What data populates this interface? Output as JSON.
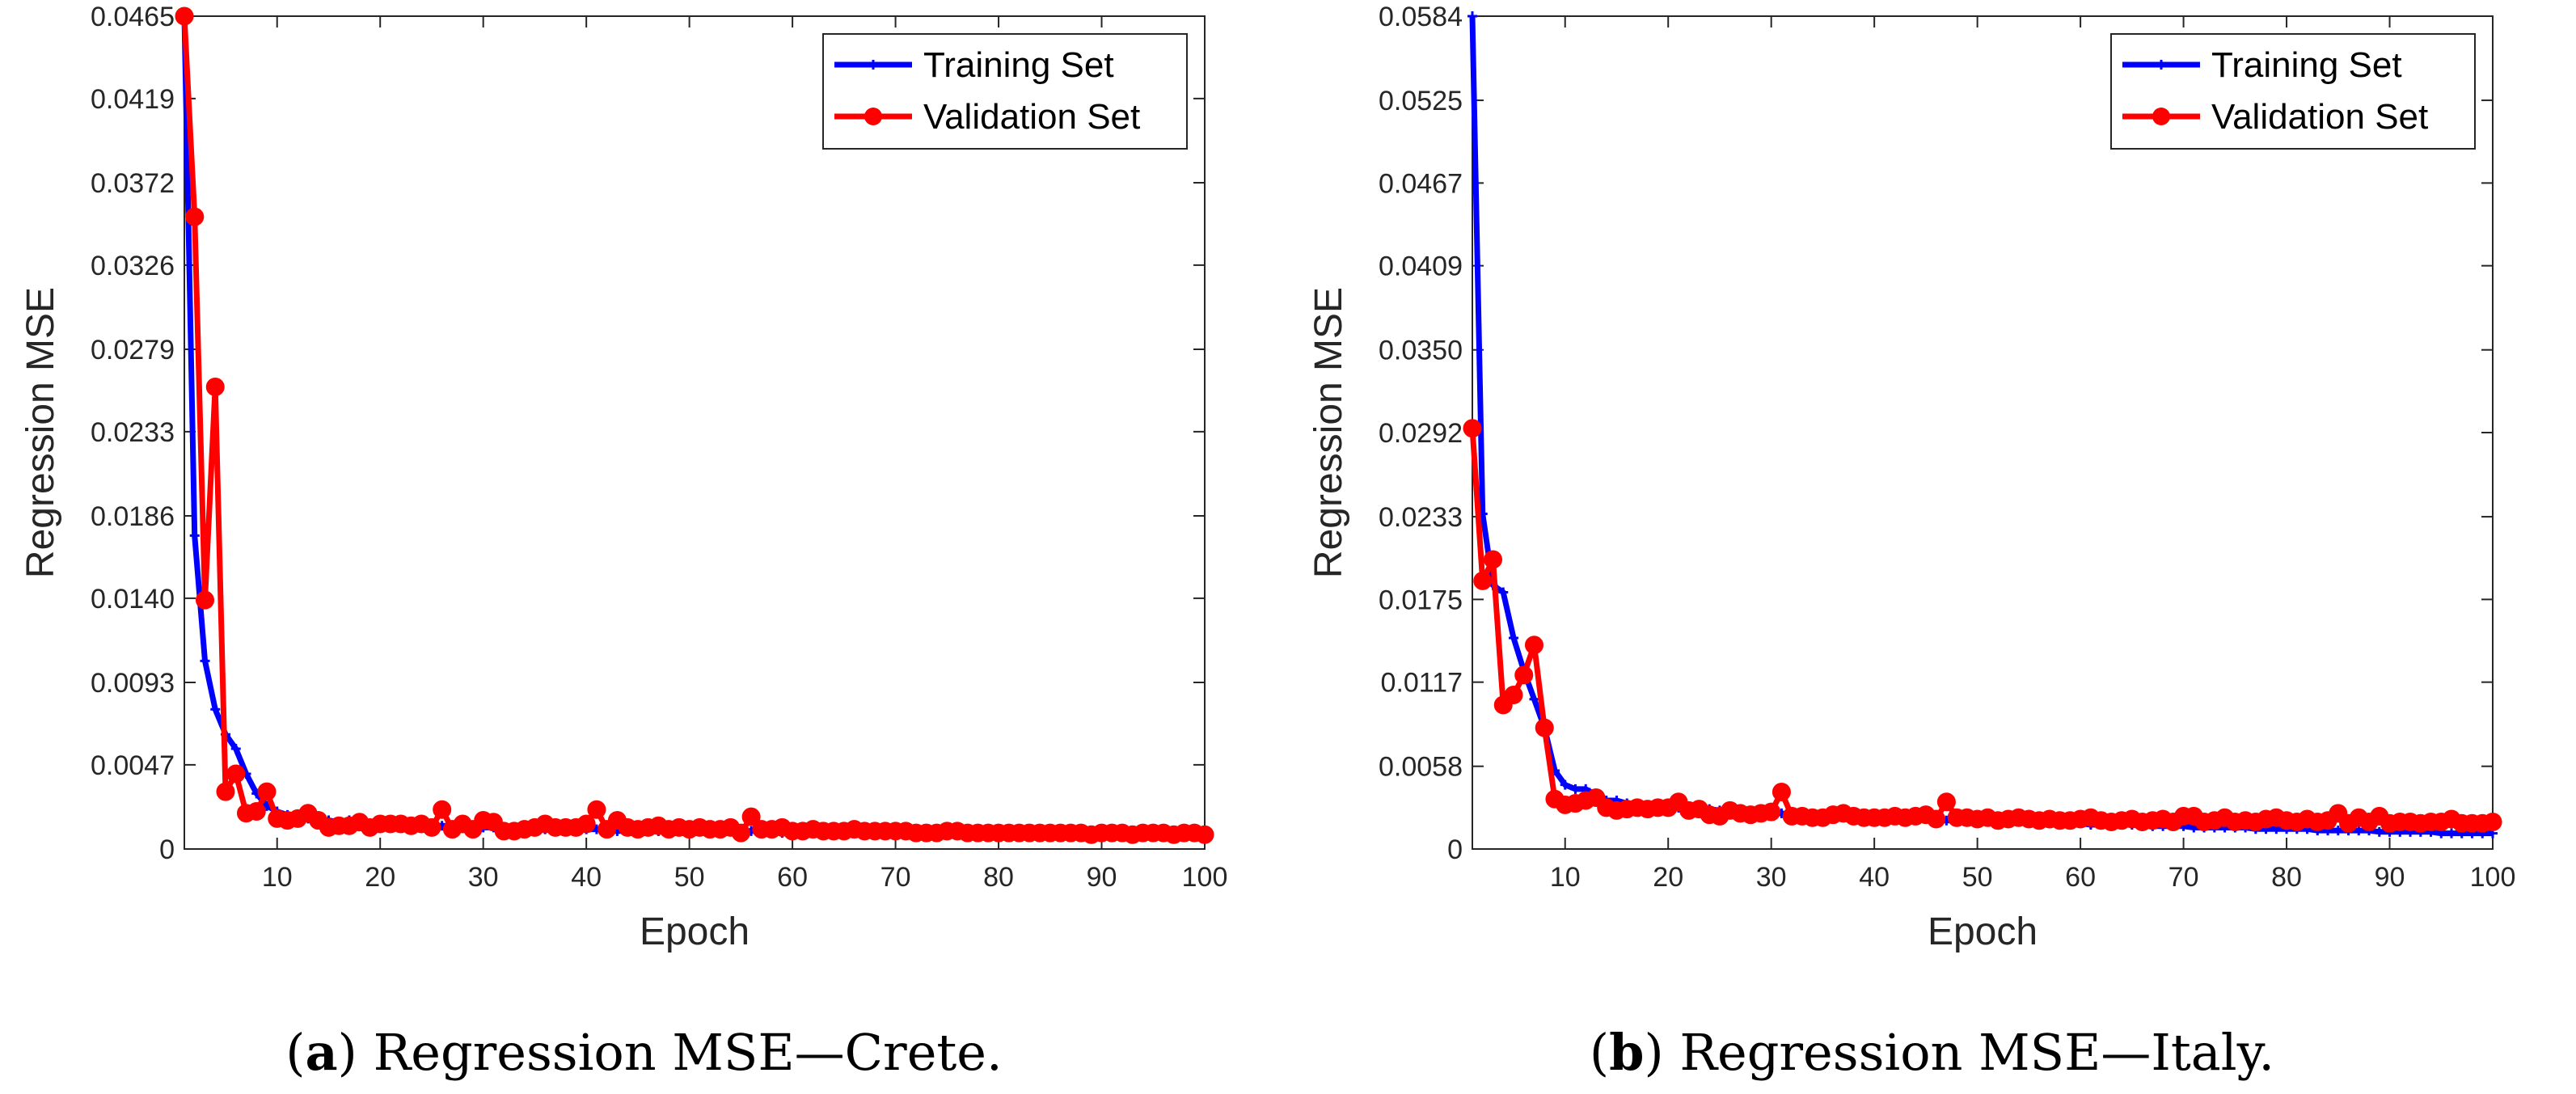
{
  "chart_data": [
    {
      "type": "line",
      "panel_label": "a",
      "caption": "Regression MSE—Crete.",
      "title": "",
      "xlabel": "Epoch",
      "ylabel": "Regression MSE",
      "xlim": [
        1,
        100
      ],
      "ylim": [
        0,
        0.0465
      ],
      "xticks": [
        10,
        20,
        30,
        40,
        50,
        60,
        70,
        80,
        90,
        100
      ],
      "xtick_labels": [
        "10",
        "20",
        "30",
        "40",
        "50",
        "60",
        "70",
        "80",
        "90",
        "100"
      ],
      "yticks": [
        0,
        0.0047,
        0.0093,
        0.014,
        0.0186,
        0.0233,
        0.0279,
        0.0326,
        0.0372,
        0.0419,
        0.0465
      ],
      "ytick_labels": [
        "0",
        "0.0047",
        "0.0093",
        "0.0140",
        "0.0186",
        "0.0233",
        "0.0279",
        "0.0326",
        "0.0372",
        "0.0419",
        "0.0465"
      ],
      "legend_position": "top-right",
      "grid": false,
      "series": [
        {
          "name": "Training Set",
          "color": "#0000ff",
          "marker": "plus",
          "values": [
            0.0465,
            0.0175,
            0.0105,
            0.0078,
            0.0064,
            0.0056,
            0.0042,
            0.0031,
            0.0024,
            0.0021,
            0.0019,
            0.0018,
            0.0017,
            0.0016,
            0.0016,
            0.0015,
            0.0016,
            0.0015,
            0.0014,
            0.0014,
            0.0014,
            0.0014,
            0.0013,
            0.0013,
            0.0013,
            0.0013,
            0.0013,
            0.0012,
            0.0012,
            0.0012,
            0.0012,
            0.0012,
            0.0012,
            0.0011,
            0.0011,
            0.0011,
            0.0011,
            0.0011,
            0.0011,
            0.0011,
            0.0011,
            0.001,
            0.001,
            0.001,
            0.001,
            0.001,
            0.001,
            0.001,
            0.001,
            0.001,
            0.001,
            0.001,
            0.001,
            0.001,
            0.001,
            0.001,
            0.001,
            0.001,
            0.0009,
            0.0009,
            0.0009,
            0.0009,
            0.0009,
            0.0009,
            0.0009,
            0.0009,
            0.0009,
            0.0009,
            0.0009,
            0.0009,
            0.0009,
            0.0009,
            0.0009,
            0.0009,
            0.0009,
            0.0008,
            0.0008,
            0.0008,
            0.0008,
            0.0008,
            0.0008,
            0.0008,
            0.0008,
            0.0008,
            0.0008,
            0.0008,
            0.0008,
            0.0008,
            0.0008,
            0.0008,
            0.0008,
            0.0008,
            0.0008,
            0.0008,
            0.0008,
            0.0008,
            0.0008,
            0.0008,
            0.0008,
            0.0008
          ]
        },
        {
          "name": "Validation Set",
          "color": "#ff0000",
          "marker": "circle",
          "values": [
            0.0465,
            0.0353,
            0.0139,
            0.0258,
            0.0032,
            0.0042,
            0.002,
            0.0021,
            0.0032,
            0.0017,
            0.0016,
            0.0017,
            0.002,
            0.0016,
            0.0012,
            0.0013,
            0.0013,
            0.0015,
            0.0012,
            0.0014,
            0.0014,
            0.0014,
            0.0013,
            0.0014,
            0.0012,
            0.0022,
            0.0011,
            0.0014,
            0.0011,
            0.0016,
            0.0015,
            0.001,
            0.001,
            0.0011,
            0.0012,
            0.0014,
            0.0012,
            0.0012,
            0.0012,
            0.0014,
            0.0022,
            0.0011,
            0.0016,
            0.0012,
            0.0011,
            0.0012,
            0.0013,
            0.0011,
            0.0012,
            0.0011,
            0.0012,
            0.0011,
            0.0011,
            0.0012,
            0.0009,
            0.0018,
            0.0011,
            0.0011,
            0.0012,
            0.001,
            0.001,
            0.0011,
            0.001,
            0.001,
            0.001,
            0.0011,
            0.001,
            0.001,
            0.001,
            0.001,
            0.001,
            0.0009,
            0.0009,
            0.0009,
            0.001,
            0.001,
            0.0009,
            0.0009,
            0.0009,
            0.0009,
            0.0009,
            0.0009,
            0.0009,
            0.0009,
            0.0009,
            0.0009,
            0.0009,
            0.0009,
            0.0008,
            0.0009,
            0.0009,
            0.0009,
            0.0008,
            0.0009,
            0.0009,
            0.0009,
            0.0008,
            0.0009,
            0.0009,
            0.0008
          ]
        }
      ]
    },
    {
      "type": "line",
      "panel_label": "b",
      "caption": "Regression MSE—Italy.",
      "title": "",
      "xlabel": "Epoch",
      "ylabel": "Regression MSE",
      "xlim": [
        1,
        100
      ],
      "ylim": [
        0,
        0.0584
      ],
      "xticks": [
        10,
        20,
        30,
        40,
        50,
        60,
        70,
        80,
        90,
        100
      ],
      "xtick_labels": [
        "10",
        "20",
        "30",
        "40",
        "50",
        "60",
        "70",
        "80",
        "90",
        "100"
      ],
      "yticks": [
        0,
        0.0058,
        0.0117,
        0.0175,
        0.0233,
        0.0292,
        0.035,
        0.0409,
        0.0467,
        0.0525,
        0.0584
      ],
      "ytick_labels": [
        "0",
        "0.0058",
        "0.0117",
        "0.0175",
        "0.0233",
        "0.0292",
        "0.0350",
        "0.0409",
        "0.0467",
        "0.0525",
        "0.0584"
      ],
      "legend_position": "top-right",
      "grid": false,
      "series": [
        {
          "name": "Training Set",
          "color": "#0000ff",
          "marker": "plus",
          "values": [
            0.0584,
            0.0235,
            0.0185,
            0.018,
            0.0148,
            0.0125,
            0.0105,
            0.0085,
            0.0055,
            0.0045,
            0.0042,
            0.0042,
            0.0038,
            0.0034,
            0.0034,
            0.0032,
            0.0031,
            0.003,
            0.003,
            0.003,
            0.0029,
            0.0029,
            0.0028,
            0.0028,
            0.0027,
            0.0027,
            0.0026,
            0.0026,
            0.0026,
            0.0025,
            0.0025,
            0.0024,
            0.0024,
            0.0024,
            0.0023,
            0.0023,
            0.0023,
            0.0022,
            0.0022,
            0.0022,
            0.0022,
            0.0021,
            0.0021,
            0.0021,
            0.0021,
            0.002,
            0.002,
            0.002,
            0.002,
            0.002,
            0.0019,
            0.0019,
            0.0019,
            0.0019,
            0.0019,
            0.0018,
            0.0018,
            0.0018,
            0.0018,
            0.0018,
            0.0017,
            0.0017,
            0.0017,
            0.0017,
            0.0017,
            0.0016,
            0.0016,
            0.0016,
            0.0016,
            0.0016,
            0.0015,
            0.0015,
            0.0015,
            0.0015,
            0.0015,
            0.0015,
            0.0014,
            0.0014,
            0.0014,
            0.0014,
            0.0014,
            0.0014,
            0.0013,
            0.0013,
            0.0013,
            0.0013,
            0.0013,
            0.0013,
            0.0012,
            0.0012,
            0.0012,
            0.0012,
            0.0012,
            0.0012,
            0.0011,
            0.0011,
            0.0011,
            0.0011,
            0.0011,
            0.0011
          ]
        },
        {
          "name": "Validation Set",
          "color": "#ff0000",
          "marker": "circle",
          "values": [
            0.0295,
            0.0188,
            0.0203,
            0.0101,
            0.0108,
            0.0122,
            0.0143,
            0.0085,
            0.0035,
            0.0031,
            0.0032,
            0.0034,
            0.0036,
            0.0029,
            0.0027,
            0.0028,
            0.0029,
            0.0028,
            0.0029,
            0.0029,
            0.0033,
            0.0027,
            0.0028,
            0.0024,
            0.0023,
            0.0027,
            0.0025,
            0.0024,
            0.0025,
            0.0026,
            0.004,
            0.0023,
            0.0023,
            0.0022,
            0.0022,
            0.0024,
            0.0025,
            0.0023,
            0.0022,
            0.0022,
            0.0022,
            0.0023,
            0.0022,
            0.0023,
            0.0024,
            0.0021,
            0.0033,
            0.0022,
            0.0022,
            0.0021,
            0.0022,
            0.002,
            0.0021,
            0.0022,
            0.0021,
            0.002,
            0.0021,
            0.002,
            0.002,
            0.0021,
            0.0022,
            0.002,
            0.0019,
            0.002,
            0.0021,
            0.0019,
            0.002,
            0.0021,
            0.0019,
            0.0023,
            0.0023,
            0.0019,
            0.002,
            0.0022,
            0.0019,
            0.002,
            0.0019,
            0.0021,
            0.0022,
            0.002,
            0.0019,
            0.0021,
            0.0019,
            0.002,
            0.0025,
            0.0018,
            0.0022,
            0.0019,
            0.0023,
            0.0018,
            0.0019,
            0.0019,
            0.0018,
            0.0019,
            0.0019,
            0.0021,
            0.0018,
            0.0018,
            0.0018,
            0.0019
          ]
        }
      ]
    }
  ]
}
